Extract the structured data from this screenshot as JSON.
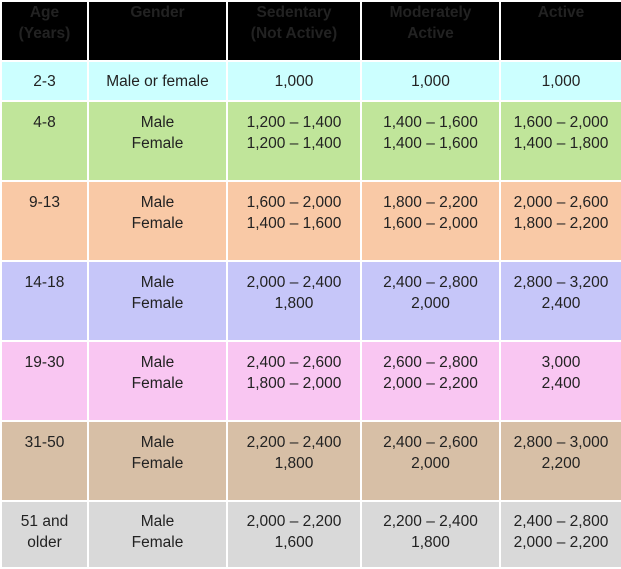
{
  "headers": [
    {
      "line1": "Age",
      "line2": "(Years)"
    },
    {
      "line1": "Gender",
      "line2": ""
    },
    {
      "line1": "Sedentary",
      "line2": "(Not Active)"
    },
    {
      "line1": "Moderately",
      "line2": "Active"
    },
    {
      "line1": "Active",
      "line2": ""
    }
  ],
  "rows": [
    {
      "color": "#ccffff",
      "age": [
        "2-3"
      ],
      "gender": [
        "Male or female"
      ],
      "sedentary": [
        "1,000"
      ],
      "moderate": [
        "1,000"
      ],
      "active": [
        "1,000"
      ]
    },
    {
      "color": "#c0e59a",
      "age": [
        "4-8"
      ],
      "gender": [
        "Male",
        "Female"
      ],
      "sedentary": [
        "1,200 – 1,400",
        "1,200 – 1,400"
      ],
      "moderate": [
        "1,400 – 1,600",
        "1,400 – 1,600"
      ],
      "active": [
        "1,600 – 2,000",
        "1,400 – 1,800"
      ]
    },
    {
      "color": "#f9c9a6",
      "age": [
        "9-13"
      ],
      "gender": [
        "Male",
        "Female"
      ],
      "sedentary": [
        "1,600 – 2,000",
        "1,400 – 1,600"
      ],
      "moderate": [
        "1,800 – 2,200",
        "1,600 – 2,000"
      ],
      "active": [
        "2,000 – 2,600",
        "1,800 – 2,200"
      ]
    },
    {
      "color": "#c6c6f9",
      "age": [
        "14-18"
      ],
      "gender": [
        "Male",
        "Female"
      ],
      "sedentary": [
        "2,000 – 2,400",
        "1,800"
      ],
      "moderate": [
        "2,400 – 2,800",
        "2,000"
      ],
      "active": [
        "2,800 – 3,200",
        "2,400"
      ]
    },
    {
      "color": "#f9c6f2",
      "age": [
        "19-30"
      ],
      "gender": [
        "Male",
        "Female"
      ],
      "sedentary": [
        "2,400 – 2,600",
        "1,800 – 2,000"
      ],
      "moderate": [
        "2,600 – 2,800",
        "2,000 – 2,200"
      ],
      "active": [
        "3,000",
        "2,400"
      ]
    },
    {
      "color": "#d7bfa6",
      "age": [
        "31-50"
      ],
      "gender": [
        "Male",
        "Female"
      ],
      "sedentary": [
        "2,200 – 2,400",
        "1,800"
      ],
      "moderate": [
        "2,400 – 2,600",
        "2,000"
      ],
      "active": [
        "2,800 – 3,000",
        "2,200"
      ]
    },
    {
      "color": "#d9d9d9",
      "age": [
        "51 and",
        "older"
      ],
      "gender": [
        "Male",
        "Female"
      ],
      "sedentary": [
        "2,000 – 2,200",
        "1,600"
      ],
      "moderate": [
        "2,200 – 2,400",
        "1,800"
      ],
      "active": [
        "2,400 – 2,800",
        "2,000 – 2,200"
      ]
    }
  ]
}
